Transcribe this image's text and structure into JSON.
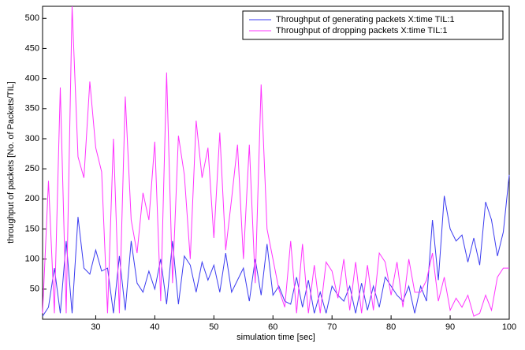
{
  "chart_data": {
    "type": "line",
    "x": [
      21,
      22,
      23,
      24,
      25,
      26,
      27,
      28,
      29,
      30,
      31,
      32,
      33,
      34,
      35,
      36,
      37,
      38,
      39,
      40,
      41,
      42,
      43,
      44,
      45,
      46,
      47,
      48,
      49,
      50,
      51,
      52,
      53,
      54,
      55,
      56,
      57,
      58,
      59,
      60,
      61,
      62,
      63,
      64,
      65,
      66,
      67,
      68,
      69,
      70,
      71,
      72,
      73,
      74,
      75,
      76,
      77,
      78,
      79,
      80,
      81,
      82,
      83,
      84,
      85,
      86,
      87,
      88,
      89,
      90,
      91,
      92,
      93,
      94,
      95,
      96,
      97,
      98,
      99,
      100
    ],
    "series": [
      {
        "name": "Throughput of generating packets X:time TIL:1",
        "color": "#3b3bf0",
        "values": [
          5,
          20,
          85,
          10,
          130,
          10,
          170,
          85,
          75,
          115,
          80,
          85,
          10,
          105,
          15,
          130,
          60,
          45,
          80,
          50,
          100,
          25,
          130,
          25,
          105,
          90,
          45,
          95,
          65,
          90,
          45,
          110,
          45,
          65,
          85,
          30,
          100,
          40,
          125,
          40,
          55,
          30,
          25,
          70,
          20,
          65,
          10,
          45,
          10,
          55,
          40,
          30,
          55,
          10,
          60,
          15,
          55,
          20,
          70,
          55,
          40,
          30,
          55,
          10,
          55,
          30,
          165,
          65,
          205,
          150,
          130,
          140,
          95,
          135,
          90,
          195,
          165,
          105,
          145,
          240
        ]
      },
      {
        "name": "Throughput of dropping packets X:time TIL:1",
        "color": "#ff33ff",
        "values": [
          10,
          230,
          10,
          385,
          10,
          520,
          270,
          235,
          395,
          285,
          245,
          10,
          300,
          10,
          370,
          165,
          110,
          210,
          165,
          295,
          30,
          410,
          60,
          305,
          240,
          100,
          330,
          235,
          285,
          135,
          310,
          115,
          200,
          290,
          100,
          290,
          60,
          390,
          150,
          100,
          50,
          20,
          130,
          10,
          125,
          10,
          90,
          10,
          95,
          80,
          35,
          100,
          15,
          95,
          10,
          90,
          15,
          110,
          95,
          40,
          95,
          20,
          100,
          45,
          45,
          65,
          110,
          30,
          70,
          15,
          35,
          20,
          40,
          5,
          10,
          40,
          15,
          70,
          85,
          85
        ]
      }
    ],
    "xlabel": "simulation time [sec]",
    "ylabel": "throughput of packets [No. of Packets/TIL]",
    "xlim": [
      21,
      100
    ],
    "ylim": [
      0,
      520
    ],
    "xticks": [
      30,
      40,
      50,
      60,
      70,
      80,
      90,
      100
    ],
    "yticks": [
      50,
      100,
      150,
      200,
      250,
      300,
      350,
      400,
      450,
      500
    ],
    "legend": "top-right"
  }
}
